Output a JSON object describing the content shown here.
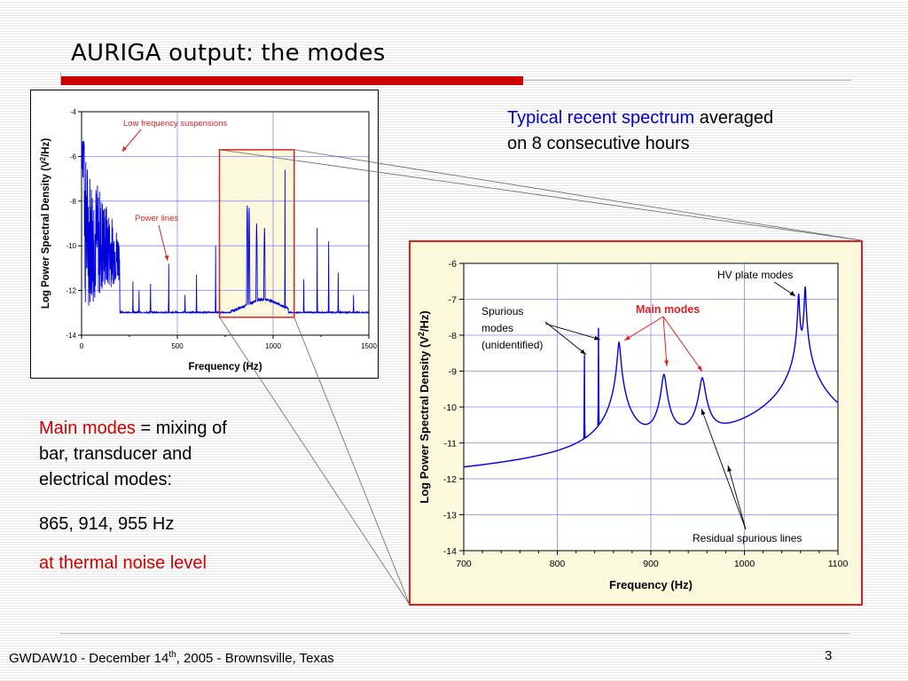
{
  "slide": {
    "title": "AURIGA output: the modes",
    "colors": {
      "accent_red": "#cc0000",
      "text_blue": "#0000cc",
      "plot_line": "#0000dd",
      "highlight_fill": "#fbf8dc"
    },
    "spectrum_note": {
      "blue_part": "Typical recent spectrum",
      "rest_line1": " averaged",
      "line2": "on 8 consecutive hours"
    },
    "main_modes_text": {
      "red_part": "Main modes",
      "rest_line1": " = mixing of",
      "line2": "bar, transducer and",
      "line3": "electrical modes:",
      "freqs": "865, 914, 955 Hz",
      "thermal": "at thermal noise level"
    },
    "footer": {
      "prefix": "GWDAW10 - December 14",
      "sup": "th",
      "suffix": ", 2005 - Brownsville, Texas",
      "page": "3"
    }
  },
  "chart_data": [
    {
      "type": "line",
      "title": "",
      "xlabel": "Frequency (Hz)",
      "ylabel_main": "Log Power Spectral Density (V",
      "ylabel_sup": "2",
      "ylabel_end": "/Hz)",
      "xlim": [
        0,
        1500
      ],
      "ylim": [
        -14,
        -4
      ],
      "xticks": [
        "0",
        "500",
        "1000",
        "1500"
      ],
      "yticks": [
        "-4",
        "-6",
        "-8",
        "-10",
        "-12",
        "-14"
      ],
      "annotations": [
        "Low frequency suspensions",
        "Power lines"
      ],
      "grid": true,
      "highlight_range_x": [
        720,
        1110
      ],
      "highlight_range_y": [
        -13.2,
        -5.7
      ],
      "series": [
        {
          "baseline": -13.0,
          "lowfreq_noise_range_hz": [
            0,
            200
          ],
          "peaks": [
            {
              "x": 268,
              "y": -11.6
            },
            {
              "x": 300,
              "y": -12.0
            },
            {
              "x": 360,
              "y": -11.7
            },
            {
              "x": 455,
              "y": -10.8
            },
            {
              "x": 540,
              "y": -12.2
            },
            {
              "x": 600,
              "y": -11.3
            },
            {
              "x": 700,
              "y": -10.0
            },
            {
              "x": 865,
              "y": -8.2
            },
            {
              "x": 875,
              "y": -8.3
            },
            {
              "x": 914,
              "y": -9.0
            },
            {
              "x": 955,
              "y": -9.2
            },
            {
              "x": 1062,
              "y": -6.6
            },
            {
              "x": 1160,
              "y": -11.5
            },
            {
              "x": 1230,
              "y": -9.2
            },
            {
              "x": 1290,
              "y": -9.8
            },
            {
              "x": 1340,
              "y": -11.2
            },
            {
              "x": 1420,
              "y": -12.2
            }
          ]
        }
      ]
    },
    {
      "type": "line",
      "title": "",
      "xlabel": "Frequency (Hz)",
      "ylabel_main": "Log Power Spectral Density (V",
      "ylabel_sup": "2",
      "ylabel_end": "/Hz)",
      "xlim": [
        700,
        1100
      ],
      "ylim": [
        -14,
        -6
      ],
      "xticks": [
        "700",
        "800",
        "900",
        "1000",
        "1100"
      ],
      "yticks": [
        "-6",
        "-7",
        "-8",
        "-9",
        "-10",
        "-11",
        "-12",
        "-13",
        "-14"
      ],
      "grid": true,
      "annotations": {
        "hv_plate": "HV plate modes",
        "main_modes": "Main modes",
        "spurious": [
          "Spurious",
          "modes",
          "(unidentified)"
        ],
        "residual": "Residual spurious lines"
      },
      "series": [
        {
          "baseline_start": -12.75,
          "baseline_end": -12.4,
          "narrow_peaks": [
            {
              "x": 829,
              "y": -8.55
            },
            {
              "x": 844,
              "y": -7.8
            },
            {
              "x": 745,
              "y": -12.6
            },
            {
              "x": 770,
              "y": -12.45
            },
            {
              "x": 818,
              "y": -12.5
            },
            {
              "x": 858,
              "y": -12.1
            }
          ],
          "broad_peaks": [
            {
              "x": 866,
              "y": -8.2,
              "w": 1.4
            },
            {
              "x": 914,
              "y": -9.1,
              "w": 2.2
            },
            {
              "x": 955,
              "y": -9.2,
              "w": 2.6
            }
          ],
          "hv_plate_peaks": [
            {
              "x": 1058,
              "y": -6.85
            },
            {
              "x": 1065,
              "y": -6.65
            }
          ]
        }
      ]
    }
  ]
}
